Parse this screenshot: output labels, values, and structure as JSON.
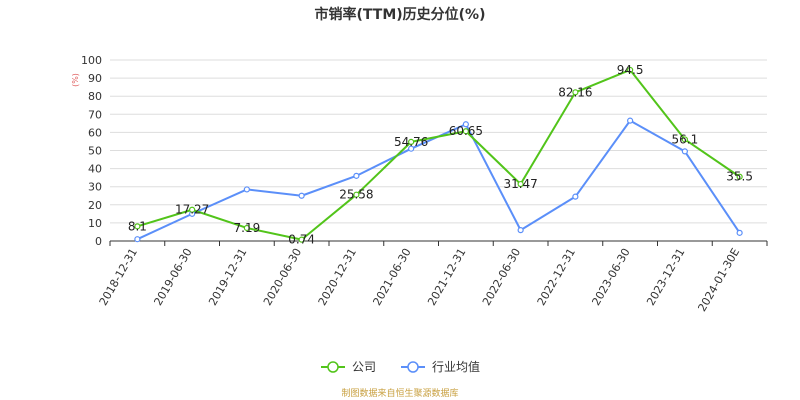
{
  "chart_data": {
    "type": "line",
    "title": "市销率(TTM)历史分位(%)",
    "yunit": "(%)",
    "ylim": [
      0,
      100
    ],
    "yticks": [
      0,
      10,
      20,
      30,
      40,
      50,
      60,
      70,
      80,
      90,
      100
    ],
    "grid": true,
    "legend_position": "bottom",
    "categories": [
      "2018-12-31",
      "2019-06-30",
      "2019-12-31",
      "2020-06-30",
      "2020-12-31",
      "2021-06-30",
      "2021-12-31",
      "2022-06-30",
      "2022-12-31",
      "2023-06-30",
      "2023-12-31",
      "2024-01-30E"
    ],
    "series": [
      {
        "name": "公司",
        "color": "#52c41a",
        "labeled": true,
        "values": [
          8.1,
          17.27,
          7.19,
          0.74,
          25.58,
          54.76,
          60.65,
          31.47,
          82.16,
          94.5,
          56.1,
          35.5
        ]
      },
      {
        "name": "行业均值",
        "color": "#5b8ff9",
        "labeled": false,
        "values": [
          1.0,
          15.0,
          28.5,
          25.0,
          36.0,
          51.0,
          64.5,
          6.0,
          24.5,
          66.5,
          49.5,
          4.5
        ]
      }
    ]
  },
  "source_note": "制图数据来自恒生聚源数据库"
}
